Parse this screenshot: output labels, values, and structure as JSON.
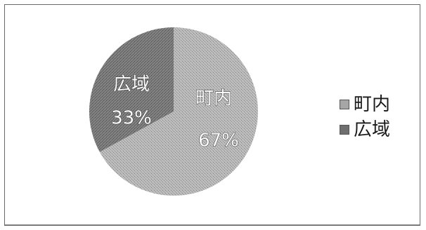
{
  "chart_data": {
    "type": "pie",
    "title": "",
    "slices": [
      {
        "name": "町内",
        "value": 67,
        "label_name": "町内",
        "label_value": "67%",
        "color": "#a6a6a6"
      },
      {
        "name": "広域",
        "value": 33,
        "label_name": "広域",
        "label_value": "33%",
        "color": "#6f6f6f"
      }
    ],
    "legend": {
      "placement": "right",
      "entries": [
        "町内",
        "広域"
      ]
    }
  }
}
